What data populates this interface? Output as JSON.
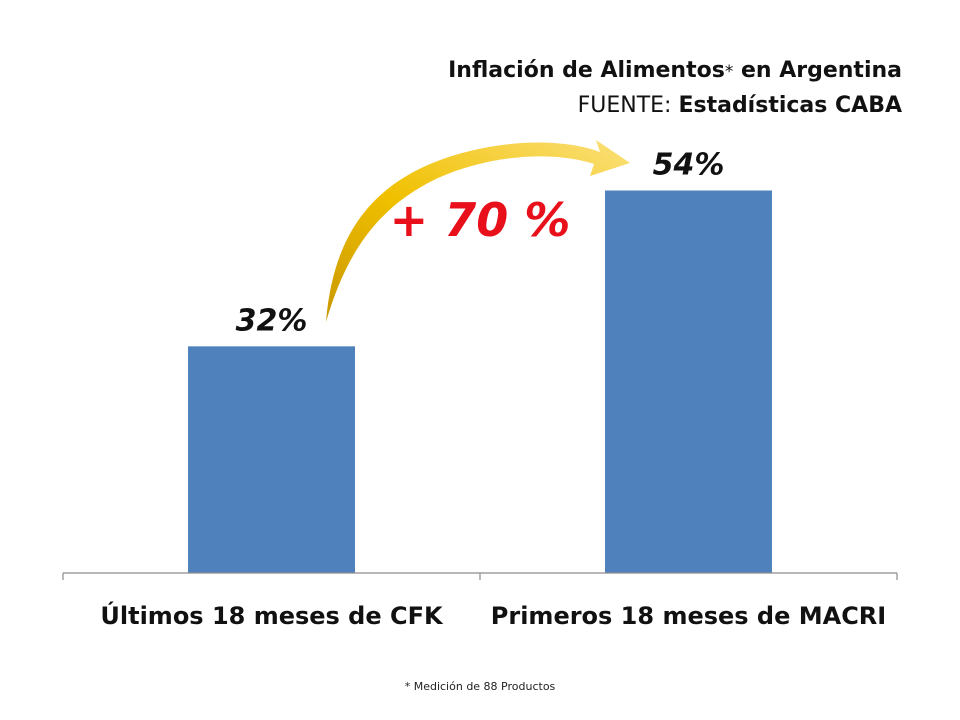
{
  "title": {
    "line1_main": "Inflación de Alimentos",
    "line1_asterisk": "*",
    "line1_tail": " en Argentina",
    "line2_prefix": "FUENTE: ",
    "line2_source": "Estadísticas CABA"
  },
  "footnote": "* Medición de 88 Productos",
  "change_label": "+ 70 %",
  "colors": {
    "bar": "#4f81bd",
    "arrow": "#e8b400",
    "change_label": "#e8111b",
    "axis": "#8c8c8c"
  },
  "chart_data": {
    "type": "bar",
    "categories": [
      "Últimos 18 meses de CFK",
      "Primeros 18 meses de MACRI"
    ],
    "values": [
      32,
      54
    ],
    "value_labels": [
      "32%",
      "54%"
    ],
    "ylim": [
      0,
      60
    ],
    "grid": false,
    "legend": "none"
  }
}
